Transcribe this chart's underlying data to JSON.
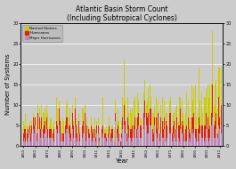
{
  "title": "Atlantic Basin Storm Count",
  "subtitle": "(Including Subtropical Cyclones)",
  "xlabel": "Year",
  "ylabel": "Number of Systems",
  "years": [
    1851,
    1852,
    1853,
    1854,
    1855,
    1856,
    1857,
    1858,
    1859,
    1860,
    1861,
    1862,
    1863,
    1864,
    1865,
    1866,
    1867,
    1868,
    1869,
    1870,
    1871,
    1872,
    1873,
    1874,
    1875,
    1876,
    1877,
    1878,
    1879,
    1880,
    1881,
    1882,
    1883,
    1884,
    1885,
    1886,
    1887,
    1888,
    1889,
    1890,
    1891,
    1892,
    1893,
    1894,
    1895,
    1896,
    1897,
    1898,
    1899,
    1900,
    1901,
    1902,
    1903,
    1904,
    1905,
    1906,
    1907,
    1908,
    1909,
    1910,
    1911,
    1912,
    1913,
    1914,
    1915,
    1916,
    1917,
    1918,
    1919,
    1920,
    1921,
    1922,
    1923,
    1924,
    1925,
    1926,
    1927,
    1928,
    1929,
    1930,
    1931,
    1932,
    1933,
    1934,
    1935,
    1936,
    1937,
    1938,
    1939,
    1940,
    1941,
    1942,
    1943,
    1944,
    1945,
    1946,
    1947,
    1948,
    1949,
    1950,
    1951,
    1952,
    1953,
    1954,
    1955,
    1956,
    1957,
    1958,
    1959,
    1960,
    1961,
    1962,
    1963,
    1964,
    1965,
    1966,
    1967,
    1968,
    1969,
    1970,
    1971,
    1972,
    1973,
    1974,
    1975,
    1976,
    1977,
    1978,
    1979,
    1980,
    1981,
    1982,
    1983,
    1984,
    1985,
    1986,
    1987,
    1988,
    1989,
    1990,
    1991,
    1992,
    1993,
    1994,
    1995,
    1996,
    1997,
    1998,
    1999,
    2000,
    2001,
    2002,
    2003,
    2004,
    2005,
    2006,
    2007,
    2008,
    2009,
    2010,
    2011,
    2012
  ],
  "named_storms": [
    6,
    5,
    8,
    5,
    5,
    6,
    4,
    6,
    8,
    7,
    7,
    5,
    10,
    9,
    6,
    10,
    8,
    8,
    9,
    10,
    8,
    5,
    7,
    7,
    5,
    6,
    4,
    12,
    9,
    11,
    7,
    5,
    7,
    6,
    6,
    10,
    11,
    7,
    9,
    4,
    10,
    6,
    12,
    7,
    5,
    8,
    4,
    9,
    9,
    9,
    10,
    5,
    7,
    5,
    4,
    7,
    4,
    5,
    7,
    3,
    6,
    7,
    3,
    1,
    5,
    12,
    4,
    4,
    5,
    4,
    7,
    4,
    5,
    5,
    4,
    11,
    6,
    9,
    6,
    1,
    6,
    12,
    21,
    11,
    5,
    12,
    8,
    9,
    8,
    9,
    11,
    12,
    7,
    13,
    11,
    7,
    7,
    8,
    13,
    16,
    10,
    11,
    14,
    15,
    12,
    8,
    8,
    10,
    12,
    7,
    11,
    5,
    10,
    12,
    6,
    11,
    8,
    8,
    12,
    11,
    12,
    4,
    8,
    8,
    9,
    10,
    6,
    12,
    12,
    11,
    8,
    6,
    8,
    13,
    11,
    6,
    7,
    15,
    11,
    14,
    15,
    7,
    8,
    19,
    11,
    13,
    8,
    12,
    12,
    14,
    15,
    12,
    15,
    15,
    28,
    10,
    15,
    16,
    9,
    19,
    19,
    19
  ],
  "hurricanes": [
    3,
    4,
    4,
    3,
    4,
    5,
    3,
    5,
    7,
    5,
    7,
    3,
    8,
    7,
    4,
    7,
    4,
    5,
    6,
    7,
    4,
    4,
    4,
    4,
    3,
    4,
    3,
    6,
    5,
    9,
    6,
    3,
    3,
    3,
    5,
    7,
    7,
    5,
    5,
    3,
    8,
    5,
    9,
    5,
    3,
    6,
    3,
    5,
    5,
    6,
    8,
    3,
    5,
    4,
    3,
    5,
    3,
    4,
    4,
    2,
    5,
    5,
    2,
    0,
    4,
    5,
    3,
    3,
    2,
    3,
    5,
    3,
    4,
    4,
    1,
    8,
    4,
    5,
    3,
    1,
    3,
    7,
    10,
    6,
    3,
    7,
    5,
    4,
    4,
    5,
    5,
    7,
    4,
    7,
    8,
    5,
    5,
    7,
    8,
    11,
    8,
    7,
    8,
    9,
    9,
    4,
    3,
    7,
    7,
    4,
    8,
    3,
    7,
    6,
    4,
    7,
    6,
    5,
    7,
    8,
    8,
    3,
    5,
    6,
    4,
    7,
    5,
    5,
    9,
    6,
    5,
    3,
    4,
    5,
    7,
    4,
    3,
    7,
    7,
    8,
    4,
    4,
    4,
    7,
    5,
    5,
    5,
    5,
    5,
    8,
    7,
    4,
    5,
    8,
    15,
    5,
    6,
    8,
    3,
    12,
    7,
    10
  ],
  "major_hurricanes": [
    1,
    2,
    1,
    1,
    2,
    3,
    1,
    3,
    4,
    3,
    5,
    1,
    4,
    4,
    2,
    4,
    2,
    3,
    3,
    4,
    2,
    2,
    2,
    2,
    2,
    1,
    1,
    4,
    3,
    5,
    3,
    1,
    1,
    1,
    3,
    4,
    4,
    3,
    2,
    1,
    4,
    2,
    5,
    2,
    1,
    3,
    1,
    3,
    2,
    3,
    3,
    1,
    3,
    2,
    2,
    3,
    1,
    2,
    2,
    1,
    3,
    3,
    1,
    0,
    2,
    3,
    2,
    2,
    1,
    2,
    3,
    1,
    2,
    2,
    1,
    6,
    2,
    3,
    1,
    0,
    2,
    4,
    5,
    3,
    1,
    4,
    2,
    2,
    1,
    2,
    2,
    4,
    2,
    4,
    5,
    2,
    2,
    4,
    4,
    7,
    5,
    3,
    3,
    5,
    5,
    1,
    1,
    5,
    3,
    2,
    4,
    1,
    3,
    2,
    2,
    4,
    1,
    2,
    4,
    3,
    3,
    1,
    3,
    2,
    1,
    4,
    2,
    1,
    4,
    3,
    3,
    1,
    1,
    1,
    4,
    2,
    1,
    3,
    4,
    3,
    2,
    1,
    1,
    3,
    3,
    2,
    2,
    1,
    2,
    4,
    2,
    1,
    2,
    5,
    7,
    2,
    2,
    4,
    2,
    5,
    4,
    3
  ],
  "color_named": "#cccc00",
  "color_hurricane": "#dd2200",
  "color_major": "#bb88bb",
  "ylim": [
    0,
    30
  ],
  "yticks": [
    0,
    5,
    10,
    15,
    20,
    25,
    30
  ],
  "plot_bg": "#cccccc",
  "fig_bg": "#cccccc",
  "legend_bg": "#bbbbbb",
  "xtick_start": 1851,
  "xtick_end": 2012,
  "xtick_step": 10
}
